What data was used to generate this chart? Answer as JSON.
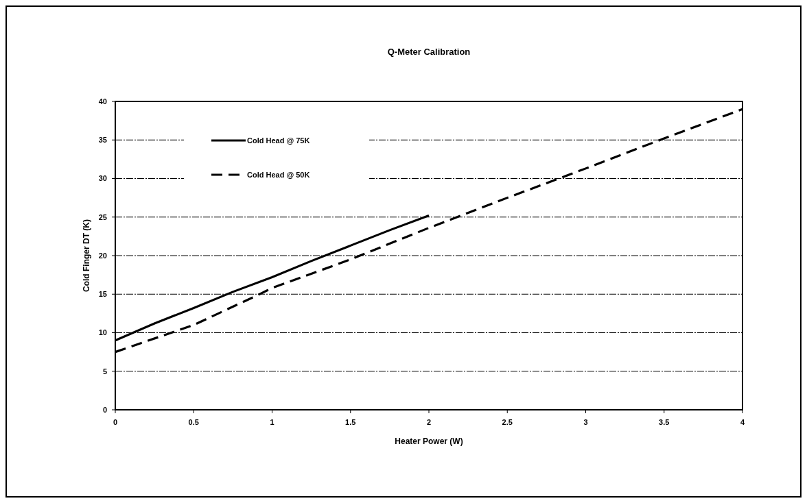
{
  "chart_data": {
    "type": "line",
    "title": "Q-Meter Calibration",
    "xlabel": "Heater Power (W)",
    "ylabel": "Cold Finger DT (K)",
    "xlim": [
      0,
      4
    ],
    "xticks": [
      0,
      0.5,
      1,
      1.5,
      2,
      2.5,
      3,
      3.5,
      4
    ],
    "ylim": [
      0,
      40
    ],
    "yticks": [
      0,
      5,
      10,
      15,
      20,
      25,
      30,
      35,
      40
    ],
    "grid": "y",
    "legend": "top left",
    "marker": "none",
    "series": [
      {
        "name": "Cold Head @ 75K",
        "color": "#000000",
        "line_style": "solid",
        "x": [
          0,
          0.25,
          0.5,
          0.75,
          1,
          1.25,
          1.5,
          1.75,
          2
        ],
        "values": [
          9,
          11.2,
          13.2,
          15.3,
          17.2,
          19.3,
          21.3,
          23.3,
          25.2
        ]
      },
      {
        "name": "Cold Head @ 50K",
        "color": "#000000",
        "line_style": "dashed",
        "x": [
          0,
          0.5,
          0.9,
          1,
          1.5,
          2,
          2.5,
          3,
          3.5,
          4
        ],
        "values": [
          7.5,
          11,
          14.8,
          15.8,
          19.5,
          23.6,
          27.5,
          31.3,
          35.2,
          39
        ]
      }
    ]
  }
}
